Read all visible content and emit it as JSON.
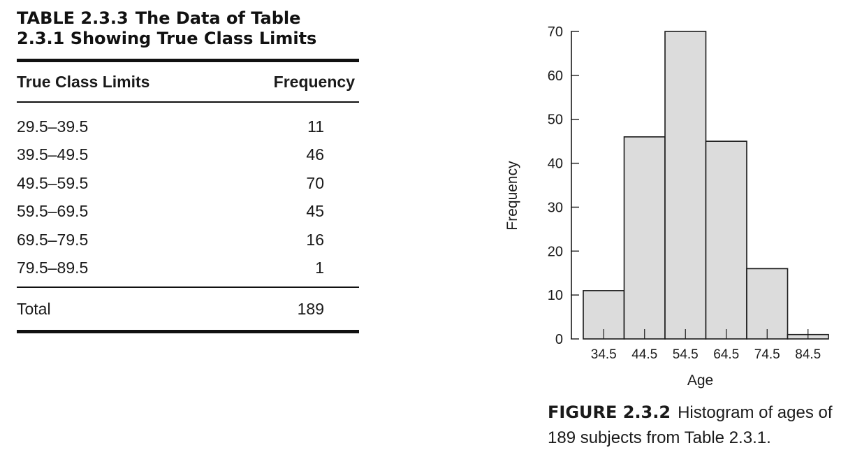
{
  "table": {
    "number": "TABLE 2.3.3",
    "title": "The Data of Table 2.3.1 Showing True Class Limits",
    "headers": [
      "True Class Limits",
      "Frequency"
    ],
    "rows": [
      {
        "limits": "29.5–39.5",
        "frequency": "11"
      },
      {
        "limits": "39.5–49.5",
        "frequency": "46"
      },
      {
        "limits": "49.5–59.5",
        "frequency": "70"
      },
      {
        "limits": "59.5–69.5",
        "frequency": "45"
      },
      {
        "limits": "69.5–79.5",
        "frequency": "16"
      },
      {
        "limits": "79.5–89.5",
        "frequency": "1"
      }
    ],
    "total": {
      "label": "Total",
      "value": "189"
    }
  },
  "figure": {
    "number": "FIGURE 2.3.2",
    "caption": "Histogram of ages of 189 subjects from Table 2.3.1."
  },
  "chart_data": {
    "type": "bar",
    "histogram": true,
    "categories": [
      "34.5",
      "44.5",
      "54.5",
      "64.5",
      "74.5",
      "84.5"
    ],
    "values": [
      11,
      46,
      70,
      45,
      16,
      1
    ],
    "bin_edges": [
      29.5,
      39.5,
      49.5,
      59.5,
      69.5,
      79.5,
      89.5
    ],
    "xlabel": "Age",
    "ylabel": "Frequency",
    "ylim": [
      0,
      70
    ],
    "yticks": [
      0,
      10,
      20,
      30,
      40,
      50,
      60,
      70
    ],
    "grid": false,
    "bar_color": "#dcdcdc",
    "edge_color": "#1a1a1a"
  }
}
